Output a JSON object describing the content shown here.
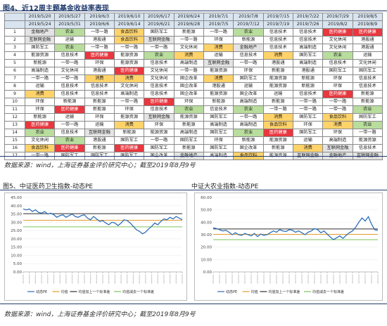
{
  "figure4": {
    "title": "图4、近12周主题基金收益率表现",
    "header_start": [
      "2019/5/20",
      "2019/5/27",
      "2019/6/3",
      "2019/6/10",
      "2019/6/17",
      "2019/6/24",
      "2019/7/1",
      "2019/7/8",
      "2019/7/15",
      "2019/7/22",
      "2019/7/29",
      "2019/8/5"
    ],
    "header_end": [
      "2019/5/24",
      "2019/5/31",
      "2019/6/6",
      "2019/6/14",
      "2019/6/21",
      "2019/6/28",
      "2019/7/5",
      "2019/7/12",
      "2019/7/19",
      "2019/7/26",
      "2019/8/2",
      "2019/8/9"
    ],
    "rows": [
      {
        "rank": "1",
        "cells": [
          "金融地产",
          "农业",
          "一带一路",
          "食品饮料",
          "国防军工",
          "新能源",
          "一带一路",
          "农业",
          "信息技术",
          "信息技术",
          "医药健康",
          "医药健康"
        ]
      },
      {
        "rank": "2",
        "cells": [
          "互联网金融",
          "运输",
          "港股通",
          "食品饮料",
          "互联网金融",
          "一带一路",
          "环保",
          "新能源",
          "信息技术",
          "信息技术",
          "文化休闲",
          "港股通"
        ]
      },
      {
        "rank": "3",
        "cells": [
          "国防军工",
          "农业",
          "一带一路",
          "一带一路",
          "一带一路",
          "文化休闲",
          "消费",
          "金融地产",
          "信息技术",
          "高端制造",
          "文化休闲",
          "港股通"
        ]
      },
      {
        "rank": "4",
        "cells": [
          "能源资源",
          "信息技术",
          "医药健康",
          "能源资源",
          "农业",
          "消费",
          "运输",
          "信息技术",
          "消费",
          "国防军工",
          "农业",
          "运输"
        ]
      },
      {
        "rank": "5",
        "cells": [
          "新能源",
          "一带一路",
          "环保",
          "能源资源",
          "信息技术",
          "高端制造",
          "互联网金融",
          "一带一路",
          "港股通",
          "高端制造",
          "信息技术",
          "文化休闲"
        ]
      },
      {
        "rank": "6",
        "cells": [
          "高端制造",
          "文化休闲",
          "港股通",
          "医药健康",
          "文化休闲",
          "一带一路",
          "能源资源",
          "环保",
          "新能源",
          "港股通",
          "国防军工",
          "国防军工"
        ]
      },
      {
        "rank": "7",
        "cells": [
          "一带一路",
          "一带一路",
          "消费",
          "消费",
          "文化休闲",
          "国企改革",
          "消费",
          "国防军工",
          "能源资源",
          "新能源",
          "环保",
          "信息技术"
        ]
      },
      {
        "rank": "8",
        "cells": [
          "运输",
          "信息技术",
          "信息技术",
          "文化休闲",
          "信息技术",
          "国企改革",
          "港股通",
          "运输",
          "能源资源",
          "新能源",
          "环保",
          "信息技术"
        ]
      },
      {
        "rank": "9",
        "cells": [
          "消费",
          "信息技术",
          "信息技术",
          "高端制造",
          "信息技术",
          "国企改革",
          "能源资源",
          "国企改革",
          "运输",
          "信息技术",
          "医药健康",
          "新能源"
        ]
      },
      {
        "rank": "10",
        "cells": [
          "环保",
          "新能源",
          "新能源",
          "一带一路",
          "医药健康",
          "环保",
          "新能源",
          "高端制造",
          "新能源",
          "一带一路",
          "一带一路",
          "新能源"
        ]
      },
      {
        "rank": "11",
        "cells": [
          "环保",
          "医药健康",
          "新能源",
          "环保",
          "信息技术",
          "农业",
          "信息技术",
          "农业",
          "一带一路",
          "一带一路",
          "一带一路",
          "农业"
        ]
      },
      {
        "rank": "12",
        "cells": [
          "新能源",
          "运输",
          "环保",
          "能源资源",
          "互联网金融",
          "能源资源",
          "国防军工",
          "一带一路",
          "消费",
          "国防军工",
          "食品饮料",
          "国防军工"
        ]
      },
      {
        "rank": "13",
        "cells": [
          "医药健康",
          "一带一路",
          "运输",
          "消费",
          "环保",
          "新能源",
          "高端制造",
          "高端制造",
          "食品饮料",
          "环保",
          "消费",
          "农业"
        ]
      },
      {
        "rank": "14",
        "cells": [
          "农业",
          "信息技术",
          "互联网金融",
          "新能源",
          "能源资源",
          "高端制造",
          "国防军工",
          "农业",
          "医药健康",
          "国防军工",
          "环保",
          "一带一路"
        ]
      },
      {
        "rank": "15",
        "cells": [
          "文化休闲",
          "农业",
          "港股通",
          "国防军工",
          "一带一路",
          "国防军工",
          "环保",
          "新能源",
          "能源资源",
          "运输",
          "高端制造",
          "能源资源"
        ]
      },
      {
        "rank": "16",
        "cells": [
          "食品饮料",
          "医药健康",
          "新能源",
          "医药健康",
          "国防军工",
          "新能源",
          "国防军工",
          "国企改革",
          "新能源",
          "消费",
          "互联网金融",
          "信息技术"
        ]
      },
      {
        "rank": "17",
        "cells": [
          "一带一路",
          "国防军工",
          "国防军工",
          "国防军工",
          "国企改革",
          "金融地产",
          "高端制造",
          "食品饮料",
          "能源资源",
          "互联网金融",
          "金融地产",
          "互联网金融"
        ]
      }
    ],
    "source": "数据来源：wind，上海证券基金评价研究中心；截至2019年8月9号"
  },
  "highlight_colors": {
    "医药健康": "#e8373f",
    "食品饮料": "#ffd36a",
    "消费": "#ffd36a",
    "农业": "#b8dd9c",
    "金融地产": "#e4e4e4",
    "互联网金融": "#e4e4e4"
  },
  "figure5": {
    "title": "图5、中证医药卫生指数-动态PE",
    "legend": [
      "动态PE",
      "均值",
      "均值加上一个标准差",
      "均值减去一个标准差"
    ]
  },
  "figure6": {
    "title": "中证大农业指数-动态PE",
    "legend": [
      "动态PE",
      "均值",
      "均值加上一个标准差",
      "均值减去一个标准差"
    ]
  },
  "chart_data": [
    {
      "type": "line",
      "title": "图5、中证医药卫生指数-动态PE",
      "ylim": [
        0,
        45
      ],
      "yticks": [
        "0.00",
        "5.00",
        "10.00",
        "15.00",
        "20.00",
        "25.00",
        "30.00",
        "35.00",
        "40.00",
        "45.00"
      ],
      "series": [
        {
          "name": "动态PE",
          "color": "#2e6fb7",
          "values": [
            38,
            37.5,
            38,
            36.5,
            37.5,
            36,
            35.5,
            36.5,
            35,
            35.5,
            34.5,
            33,
            34,
            34.5,
            33,
            34,
            35,
            33.5,
            33,
            34,
            34.5,
            32.5,
            31.5,
            33.5,
            32,
            30.5,
            31,
            29.5,
            28.5,
            30,
            29.5,
            28,
            29.5,
            31.5,
            31,
            29.5,
            27.5,
            25.5,
            24.5,
            23,
            24,
            26,
            27.5,
            29.5,
            28.5,
            30.5,
            32,
            31.5,
            33,
            32,
            33.5,
            32.5,
            31.5
          ]
        },
        {
          "name": "均值",
          "color": "#e39c2f",
          "values": [
            31.2
          ]
        },
        {
          "name": "均值加上一个标准差",
          "color": "#2f2f2f",
          "values": [
            35.2
          ]
        },
        {
          "name": "均值减去一个标准差",
          "color": "#7bc25b",
          "values": [
            27.2
          ]
        }
      ]
    },
    {
      "type": "line",
      "title": "中证大农业指数-动态PE",
      "ylim": [
        0,
        60
      ],
      "yticks": [
        "0.00",
        "10.00",
        "20.00",
        "30.00",
        "40.00",
        "50.00",
        "60.00"
      ],
      "series": [
        {
          "name": "动态PE",
          "color": "#2e6fb7",
          "values": [
            35.5,
            35,
            34,
            33,
            33.5,
            32,
            30,
            31.5,
            30,
            29.5,
            31,
            30,
            29,
            31,
            28.5,
            30.5,
            29.5,
            30,
            31.5,
            33,
            32,
            34,
            33,
            32.5,
            34,
            33.5,
            32,
            33,
            31.5,
            30,
            32,
            33,
            35,
            34,
            31.5,
            33,
            30.5,
            28,
            26,
            27.5,
            29,
            27,
            29.5,
            31.5,
            33,
            36,
            40,
            43.5,
            41,
            44.5,
            38.5,
            34,
            33.5
          ]
        },
        {
          "name": "均值",
          "color": "#e39c2f",
          "values": [
            30.3
          ]
        },
        {
          "name": "均值加上一个标准差",
          "color": "#2f2f2f",
          "values": [
            34.6
          ]
        },
        {
          "name": "均值减去一个标准差",
          "color": "#7bc25b",
          "values": [
            26.0
          ]
        }
      ]
    }
  ]
}
